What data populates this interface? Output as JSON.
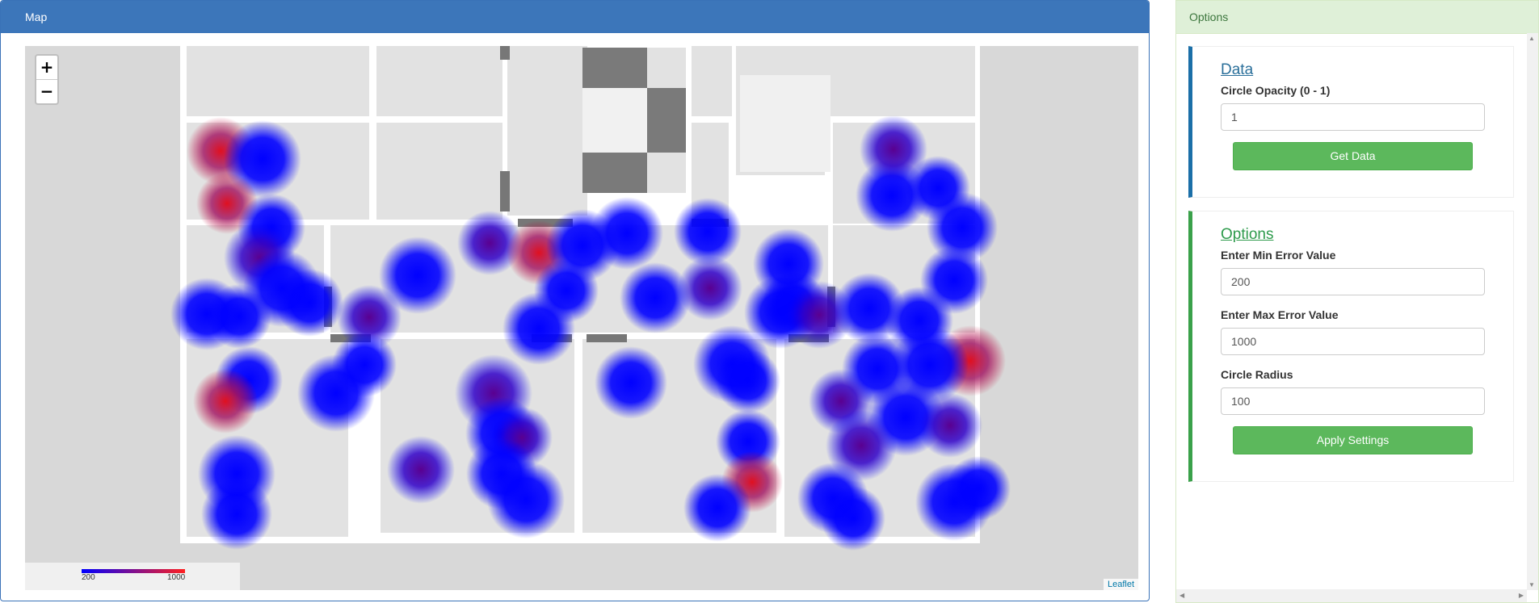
{
  "map_panel": {
    "title": "Map",
    "zoom_in": "+",
    "zoom_out": "−",
    "legend": {
      "min": "200",
      "max": "1000"
    },
    "attribution": "Leaflet",
    "colors": {
      "low": "#0000ff",
      "high": "#ff2020"
    }
  },
  "options_panel": {
    "title": "Options",
    "data_section": {
      "heading": "Data",
      "opacity_label": "Circle Opacity (0 - 1)",
      "opacity_value": "1",
      "button": "Get Data"
    },
    "settings_section": {
      "heading": "Options",
      "min_label": "Enter Min Error Value",
      "min_value": "200",
      "max_label": "Enter Max Error Value",
      "max_value": "1000",
      "radius_label": "Circle Radius",
      "radius_value": "100",
      "button": "Apply Settings"
    }
  }
}
